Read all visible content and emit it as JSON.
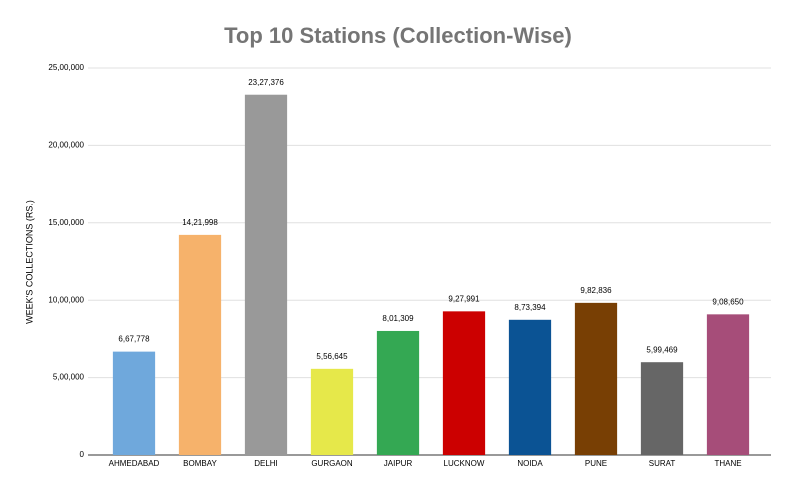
{
  "chart_data": {
    "type": "bar",
    "title": "Top 10 Stations (Collection-Wise)",
    "y_label": "WEEK'S COLLECTIONS (RS.)",
    "categories": [
      "AHMEDABAD",
      "BOMBAY",
      "DELHI",
      "GURGAON",
      "JAIPUR",
      "LUCKNOW",
      "NOIDA",
      "PUNE",
      "SURAT",
      "THANE"
    ],
    "values": [
      667778,
      1421998,
      2327376,
      556645,
      801309,
      927991,
      873394,
      982836,
      599469,
      908650
    ],
    "value_labels": [
      "6,67,778",
      "14,21,998",
      "23,27,376",
      "5,56,645",
      "8,01,309",
      "9,27,991",
      "8,73,394",
      "9,82,836",
      "5,99,469",
      "9,08,650"
    ],
    "colors": [
      "#6fa8dc",
      "#f6b26b",
      "#999999",
      "#e6e84a",
      "#34a853",
      "#cc0000",
      "#0b5394",
      "#783f04",
      "#666666",
      "#a64d79"
    ],
    "ylim": [
      0,
      2500000
    ],
    "yticks": [
      0,
      {
        "value": 500000,
        "label": "5,00,000"
      },
      {
        "value": 1000000,
        "label": "10,00,000"
      },
      {
        "value": 1500000,
        "label": "15,00,000"
      },
      {
        "value": 2000000,
        "label": "20,00,000"
      },
      {
        "value": 2500000,
        "label": "25,00,000"
      }
    ],
    "grid": true
  }
}
